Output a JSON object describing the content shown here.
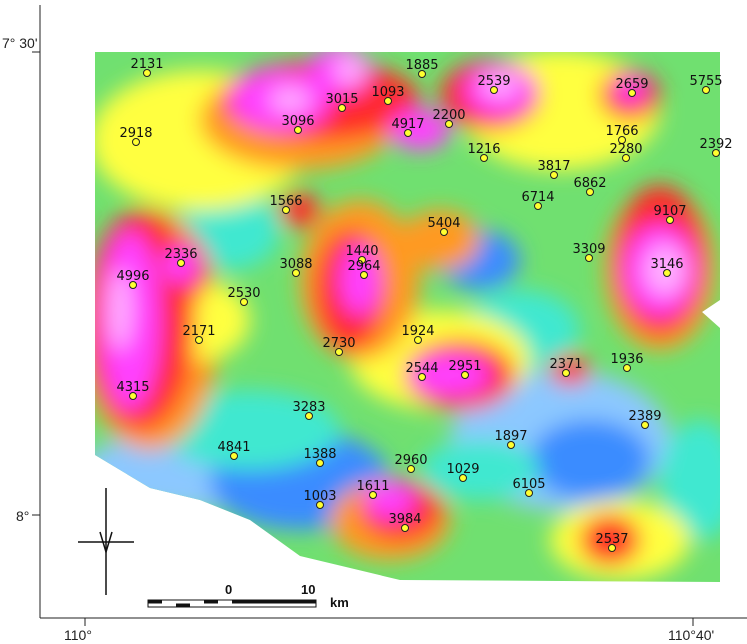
{
  "axes": {
    "lat_labels": [
      "7° 30'",
      "8°"
    ],
    "lon_labels": [
      "110°",
      "110°40'"
    ]
  },
  "points": [
    {
      "label": "2131"
    },
    {
      "label": "1885"
    },
    {
      "label": "2539"
    },
    {
      "label": "2659"
    },
    {
      "label": "5755"
    },
    {
      "label": "3015"
    },
    {
      "label": "1093"
    },
    {
      "label": "3096"
    },
    {
      "label": "4917"
    },
    {
      "label": "2200"
    },
    {
      "label": "2918"
    },
    {
      "label": "1766"
    },
    {
      "label": "2280"
    },
    {
      "label": "2392"
    },
    {
      "label": "1216"
    },
    {
      "label": "3817"
    },
    {
      "label": "6862"
    },
    {
      "label": "6714"
    },
    {
      "label": "9107"
    },
    {
      "label": "1566"
    },
    {
      "label": "5404"
    },
    {
      "label": "1440"
    },
    {
      "label": "2336"
    },
    {
      "label": "3088"
    },
    {
      "label": "2964"
    },
    {
      "label": "3309"
    },
    {
      "label": "3146"
    },
    {
      "label": "4996"
    },
    {
      "label": "2530"
    },
    {
      "label": "1924"
    },
    {
      "label": "2171"
    },
    {
      "label": "2730"
    },
    {
      "label": "2544"
    },
    {
      "label": "2951"
    },
    {
      "label": "2371"
    },
    {
      "label": "1936"
    },
    {
      "label": "4315"
    },
    {
      "label": "3283"
    },
    {
      "label": "2389"
    },
    {
      "label": "1897"
    },
    {
      "label": "4841"
    },
    {
      "label": "1388"
    },
    {
      "label": "2960"
    },
    {
      "label": "1029"
    },
    {
      "label": "6105"
    },
    {
      "label": "1611"
    },
    {
      "label": "1003"
    },
    {
      "label": "3984"
    },
    {
      "label": "2537"
    }
  ],
  "scale_bar": {
    "labels": [
      "0",
      "10",
      "km"
    ]
  }
}
